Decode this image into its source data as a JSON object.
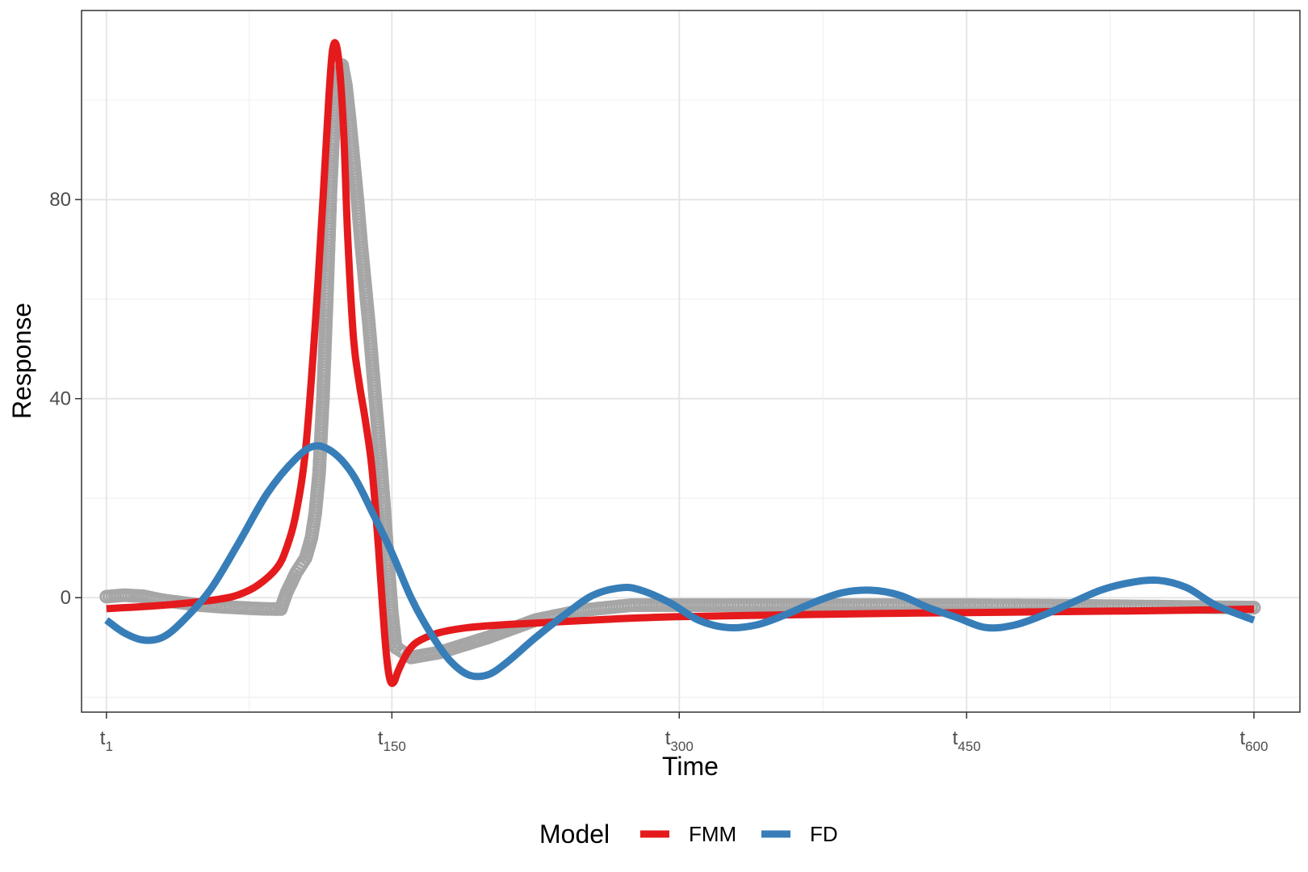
{
  "chart_data": {
    "type": "line",
    "xlabel": "Time",
    "ylabel": "Response",
    "xlim": [
      -12,
      624
    ],
    "ylim": [
      -23,
      118
    ],
    "x_ticks": [
      {
        "value": 1,
        "base": "t",
        "sub": "1"
      },
      {
        "value": 150,
        "base": "t",
        "sub": "150"
      },
      {
        "value": 300,
        "base": "t",
        "sub": "300"
      },
      {
        "value": 450,
        "base": "t",
        "sub": "450"
      },
      {
        "value": 600,
        "base": "t",
        "sub": "600"
      }
    ],
    "y_ticks": [
      0,
      40,
      80
    ],
    "grid": true,
    "legend": {
      "title": "Model",
      "position": "bottom"
    },
    "observed": {
      "marker": "open-circle",
      "color": "#A6A6A6",
      "points": [
        [
          1,
          0.2
        ],
        [
          10,
          0.5
        ],
        [
          20,
          0.3
        ],
        [
          30,
          -0.5
        ],
        [
          40,
          -1
        ],
        [
          50,
          -1.5
        ],
        [
          60,
          -1.8
        ],
        [
          70,
          -2
        ],
        [
          80,
          -2.2
        ],
        [
          90,
          -2.3
        ],
        [
          92,
          -2.3
        ],
        [
          95,
          1
        ],
        [
          100,
          5
        ],
        [
          105,
          8
        ],
        [
          108,
          12
        ],
        [
          110,
          17
        ],
        [
          112,
          25
        ],
        [
          114,
          40
        ],
        [
          116,
          60
        ],
        [
          118,
          82
        ],
        [
          120,
          98
        ],
        [
          122,
          104
        ],
        [
          124,
          107
        ],
        [
          126,
          103
        ],
        [
          128,
          96
        ],
        [
          130,
          88
        ],
        [
          132,
          80
        ],
        [
          134,
          71
        ],
        [
          136,
          63
        ],
        [
          138,
          55
        ],
        [
          140,
          46
        ],
        [
          142,
          37
        ],
        [
          144,
          28
        ],
        [
          146,
          18
        ],
        [
          148,
          7
        ],
        [
          150,
          -3
        ],
        [
          152,
          -10
        ],
        [
          160,
          -12
        ],
        [
          175,
          -11
        ],
        [
          200,
          -8
        ],
        [
          225,
          -4.5
        ],
        [
          250,
          -2.5
        ],
        [
          275,
          -1.5
        ],
        [
          300,
          -1.5
        ],
        [
          350,
          -1.5
        ],
        [
          400,
          -1.5
        ],
        [
          450,
          -1.5
        ],
        [
          500,
          -1.6
        ],
        [
          550,
          -1.8
        ],
        [
          600,
          -2
        ]
      ]
    },
    "series": [
      {
        "name": "FMM",
        "color": "#E41A1C",
        "points": [
          [
            1,
            -2.2
          ],
          [
            20,
            -1.8
          ],
          [
            40,
            -1.2
          ],
          [
            60,
            -0.3
          ],
          [
            70,
            0.6
          ],
          [
            80,
            2.5
          ],
          [
            90,
            6
          ],
          [
            95,
            10
          ],
          [
            100,
            17
          ],
          [
            105,
            30
          ],
          [
            110,
            55
          ],
          [
            114,
            80
          ],
          [
            117,
            100
          ],
          [
            119,
            110
          ],
          [
            121,
            111
          ],
          [
            123,
            105
          ],
          [
            125,
            92
          ],
          [
            127,
            72
          ],
          [
            130,
            52
          ],
          [
            133,
            43
          ],
          [
            136,
            36
          ],
          [
            139,
            28
          ],
          [
            141,
            20
          ],
          [
            143,
            10
          ],
          [
            145,
            -1
          ],
          [
            147,
            -11
          ],
          [
            149,
            -16.5
          ],
          [
            151,
            -17
          ],
          [
            153,
            -15
          ],
          [
            156,
            -12.5
          ],
          [
            160,
            -10
          ],
          [
            165,
            -8.5
          ],
          [
            175,
            -7
          ],
          [
            190,
            -6
          ],
          [
            210,
            -5.4
          ],
          [
            240,
            -4.8
          ],
          [
            270,
            -4.2
          ],
          [
            300,
            -3.8
          ],
          [
            350,
            -3.5
          ],
          [
            400,
            -3.2
          ],
          [
            450,
            -3
          ],
          [
            500,
            -2.8
          ],
          [
            550,
            -2.6
          ],
          [
            600,
            -2.3
          ]
        ]
      },
      {
        "name": "FD",
        "color": "#377EB8",
        "points": [
          [
            1,
            -4.5
          ],
          [
            10,
            -7
          ],
          [
            20,
            -8.5
          ],
          [
            30,
            -8
          ],
          [
            40,
            -5
          ],
          [
            55,
            1.5
          ],
          [
            70,
            11
          ],
          [
            85,
            21
          ],
          [
            100,
            28
          ],
          [
            110,
            30.5
          ],
          [
            120,
            29
          ],
          [
            130,
            24.5
          ],
          [
            140,
            17
          ],
          [
            150,
            9
          ],
          [
            160,
            0
          ],
          [
            170,
            -7
          ],
          [
            180,
            -12.5
          ],
          [
            190,
            -15.5
          ],
          [
            200,
            -15.5
          ],
          [
            210,
            -13
          ],
          [
            225,
            -8
          ],
          [
            240,
            -3.5
          ],
          [
            255,
            0.5
          ],
          [
            270,
            2
          ],
          [
            280,
            1.5
          ],
          [
            295,
            -1
          ],
          [
            310,
            -4.5
          ],
          [
            325,
            -6
          ],
          [
            340,
            -5.5
          ],
          [
            355,
            -3.5
          ],
          [
            370,
            -1
          ],
          [
            385,
            1
          ],
          [
            400,
            1.5
          ],
          [
            415,
            0.5
          ],
          [
            430,
            -2
          ],
          [
            445,
            -4
          ],
          [
            460,
            -6
          ],
          [
            475,
            -5.5
          ],
          [
            490,
            -3.5
          ],
          [
            505,
            -1
          ],
          [
            520,
            1.5
          ],
          [
            535,
            3
          ],
          [
            550,
            3.5
          ],
          [
            565,
            2
          ],
          [
            580,
            -1.5
          ],
          [
            600,
            -4.5
          ]
        ]
      }
    ]
  }
}
